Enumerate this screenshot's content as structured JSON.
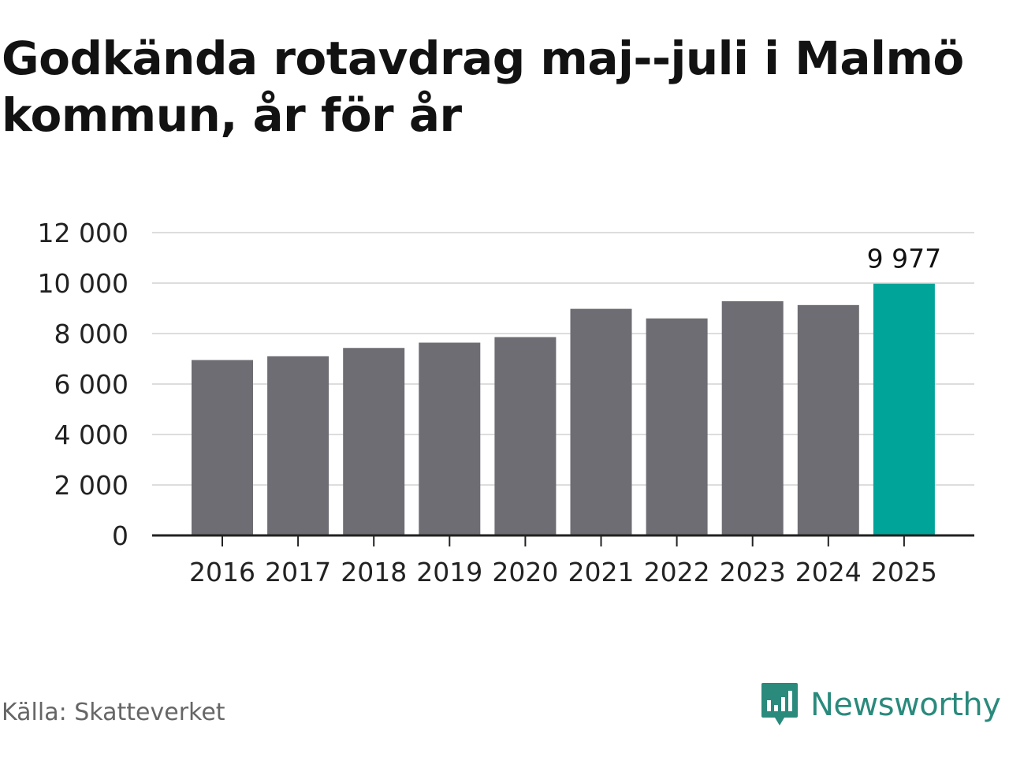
{
  "title": "Godkända rotavdrag maj--juli i Malmö kommun, år för år",
  "source": "Källa: Skatteverket",
  "brand": {
    "name": "Newsworthy",
    "icon": "newsworthy-logo-icon"
  },
  "colors": {
    "bar": "#6e6d73",
    "highlight": "#00a499",
    "grid": "#dddddd",
    "axis": "#222222",
    "brand": "#2a8a7c"
  },
  "chart_data": {
    "type": "bar",
    "title": "Godkända rotavdrag maj--juli i Malmö kommun, år för år",
    "xlabel": "",
    "ylabel": "",
    "categories": [
      "2016",
      "2017",
      "2018",
      "2019",
      "2020",
      "2021",
      "2022",
      "2023",
      "2024",
      "2025"
    ],
    "values": [
      6950,
      7100,
      7430,
      7640,
      7860,
      8980,
      8600,
      9280,
      9130,
      9977
    ],
    "highlight_index": 9,
    "data_labels": [
      {
        "index": 9,
        "text": "9 977"
      }
    ],
    "ylim": [
      0,
      12000
    ],
    "yticks": [
      0,
      2000,
      4000,
      6000,
      8000,
      10000,
      12000
    ],
    "ytick_labels": [
      "0",
      "2 000",
      "4 000",
      "6 000",
      "8 000",
      "10 000",
      "12 000"
    ],
    "grid": true,
    "legend": "none"
  }
}
